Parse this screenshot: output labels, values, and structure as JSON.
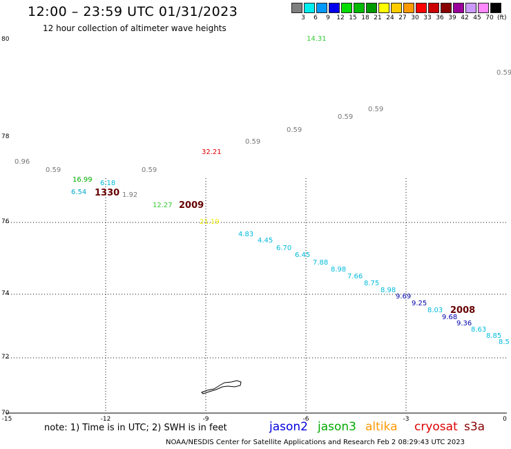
{
  "header": {
    "title": "12:00 – 23:59 UTC 01/31/2023",
    "subtitle": "12 hour collection of altimeter wave heights"
  },
  "legend": {
    "colors": [
      "#7f7f7f",
      "#00eeee",
      "#0099ff",
      "#0000ee",
      "#00dd00",
      "#00bb00",
      "#009900",
      "#ffff00",
      "#ffcc00",
      "#ff9900",
      "#ff0000",
      "#cc0000",
      "#880000",
      "#990099",
      "#cc99ff",
      "#ff88ff",
      "#000000"
    ],
    "labels": [
      "3",
      "6",
      "9",
      "12",
      "15",
      "18",
      "21",
      "24",
      "27",
      "30",
      "33",
      "36",
      "39",
      "42",
      "45",
      "70"
    ],
    "unit": "(ft)"
  },
  "axes": {
    "y_ticks": [
      "80",
      "78",
      "76",
      "74",
      "72",
      "70"
    ],
    "x_ticks": [
      "-15",
      "-12",
      "-9",
      "-6",
      "-3",
      "0"
    ]
  },
  "observations": [
    {
      "text": "14.31",
      "color": "#33cc33"
    },
    {
      "text": "0.59",
      "color": "#777777"
    },
    {
      "text": "0.59",
      "color": "#777777"
    },
    {
      "text": "0.59",
      "color": "#777777"
    },
    {
      "text": "0.59",
      "color": "#777777"
    },
    {
      "text": "0.59",
      "color": "#777777"
    },
    {
      "text": "32.21",
      "color": "#dd0000"
    },
    {
      "text": "0.96",
      "color": "#777777"
    },
    {
      "text": "0.59",
      "color": "#777777"
    },
    {
      "text": "0.59",
      "color": "#777777"
    },
    {
      "text": "16.99",
      "color": "#00aa00"
    },
    {
      "text": "6.18",
      "color": "#00bbdd"
    },
    {
      "text": "6.54",
      "color": "#00aacc"
    },
    {
      "text": "1330",
      "color": "#660000"
    },
    {
      "text": "1.92",
      "color": "#777777"
    },
    {
      "text": "12.27",
      "color": "#33cc33"
    },
    {
      "text": "2009",
      "color": "#660000"
    },
    {
      "text": "21.19",
      "color": "#eeee00"
    },
    {
      "text": "4.83",
      "color": "#00bbdd"
    },
    {
      "text": "4.45",
      "color": "#00bbdd"
    },
    {
      "text": "6.70",
      "color": "#00bbdd"
    },
    {
      "text": "6.45",
      "color": "#00bbdd"
    },
    {
      "text": "7.88",
      "color": "#00bbdd"
    },
    {
      "text": "8.98",
      "color": "#00bbdd"
    },
    {
      "text": "7.66",
      "color": "#00bbdd"
    },
    {
      "text": "8.75",
      "color": "#00bbdd"
    },
    {
      "text": "8.98",
      "color": "#00bbdd"
    },
    {
      "text": "9.69",
      "color": "#0000aa"
    },
    {
      "text": "9.25",
      "color": "#0000aa"
    },
    {
      "text": "8.03",
      "color": "#00bbdd"
    },
    {
      "text": "2008",
      "color": "#660000"
    },
    {
      "text": "9.68",
      "color": "#0000aa"
    },
    {
      "text": "9.36",
      "color": "#0000aa"
    },
    {
      "text": "8.63",
      "color": "#00bbdd"
    },
    {
      "text": "8.85",
      "color": "#00bbdd"
    },
    {
      "text": "8.5",
      "color": "#00bbdd"
    }
  ],
  "note": "note: 1) Time is in UTC; 2) SWH is in feet",
  "satellites": [
    {
      "name": "jason2",
      "color": "#0000dd"
    },
    {
      "name": "jason3",
      "color": "#00aa00"
    },
    {
      "name": "altika",
      "color": "#ff9900"
    },
    {
      "name": "cryosat",
      "color": "#dd0000"
    },
    {
      "name": "s3a",
      "color": "#880000"
    }
  ],
  "footer": "NOAA/NESDIS Center for Satellite Applications and Research   Feb  2 08:29:43 UTC 2023"
}
